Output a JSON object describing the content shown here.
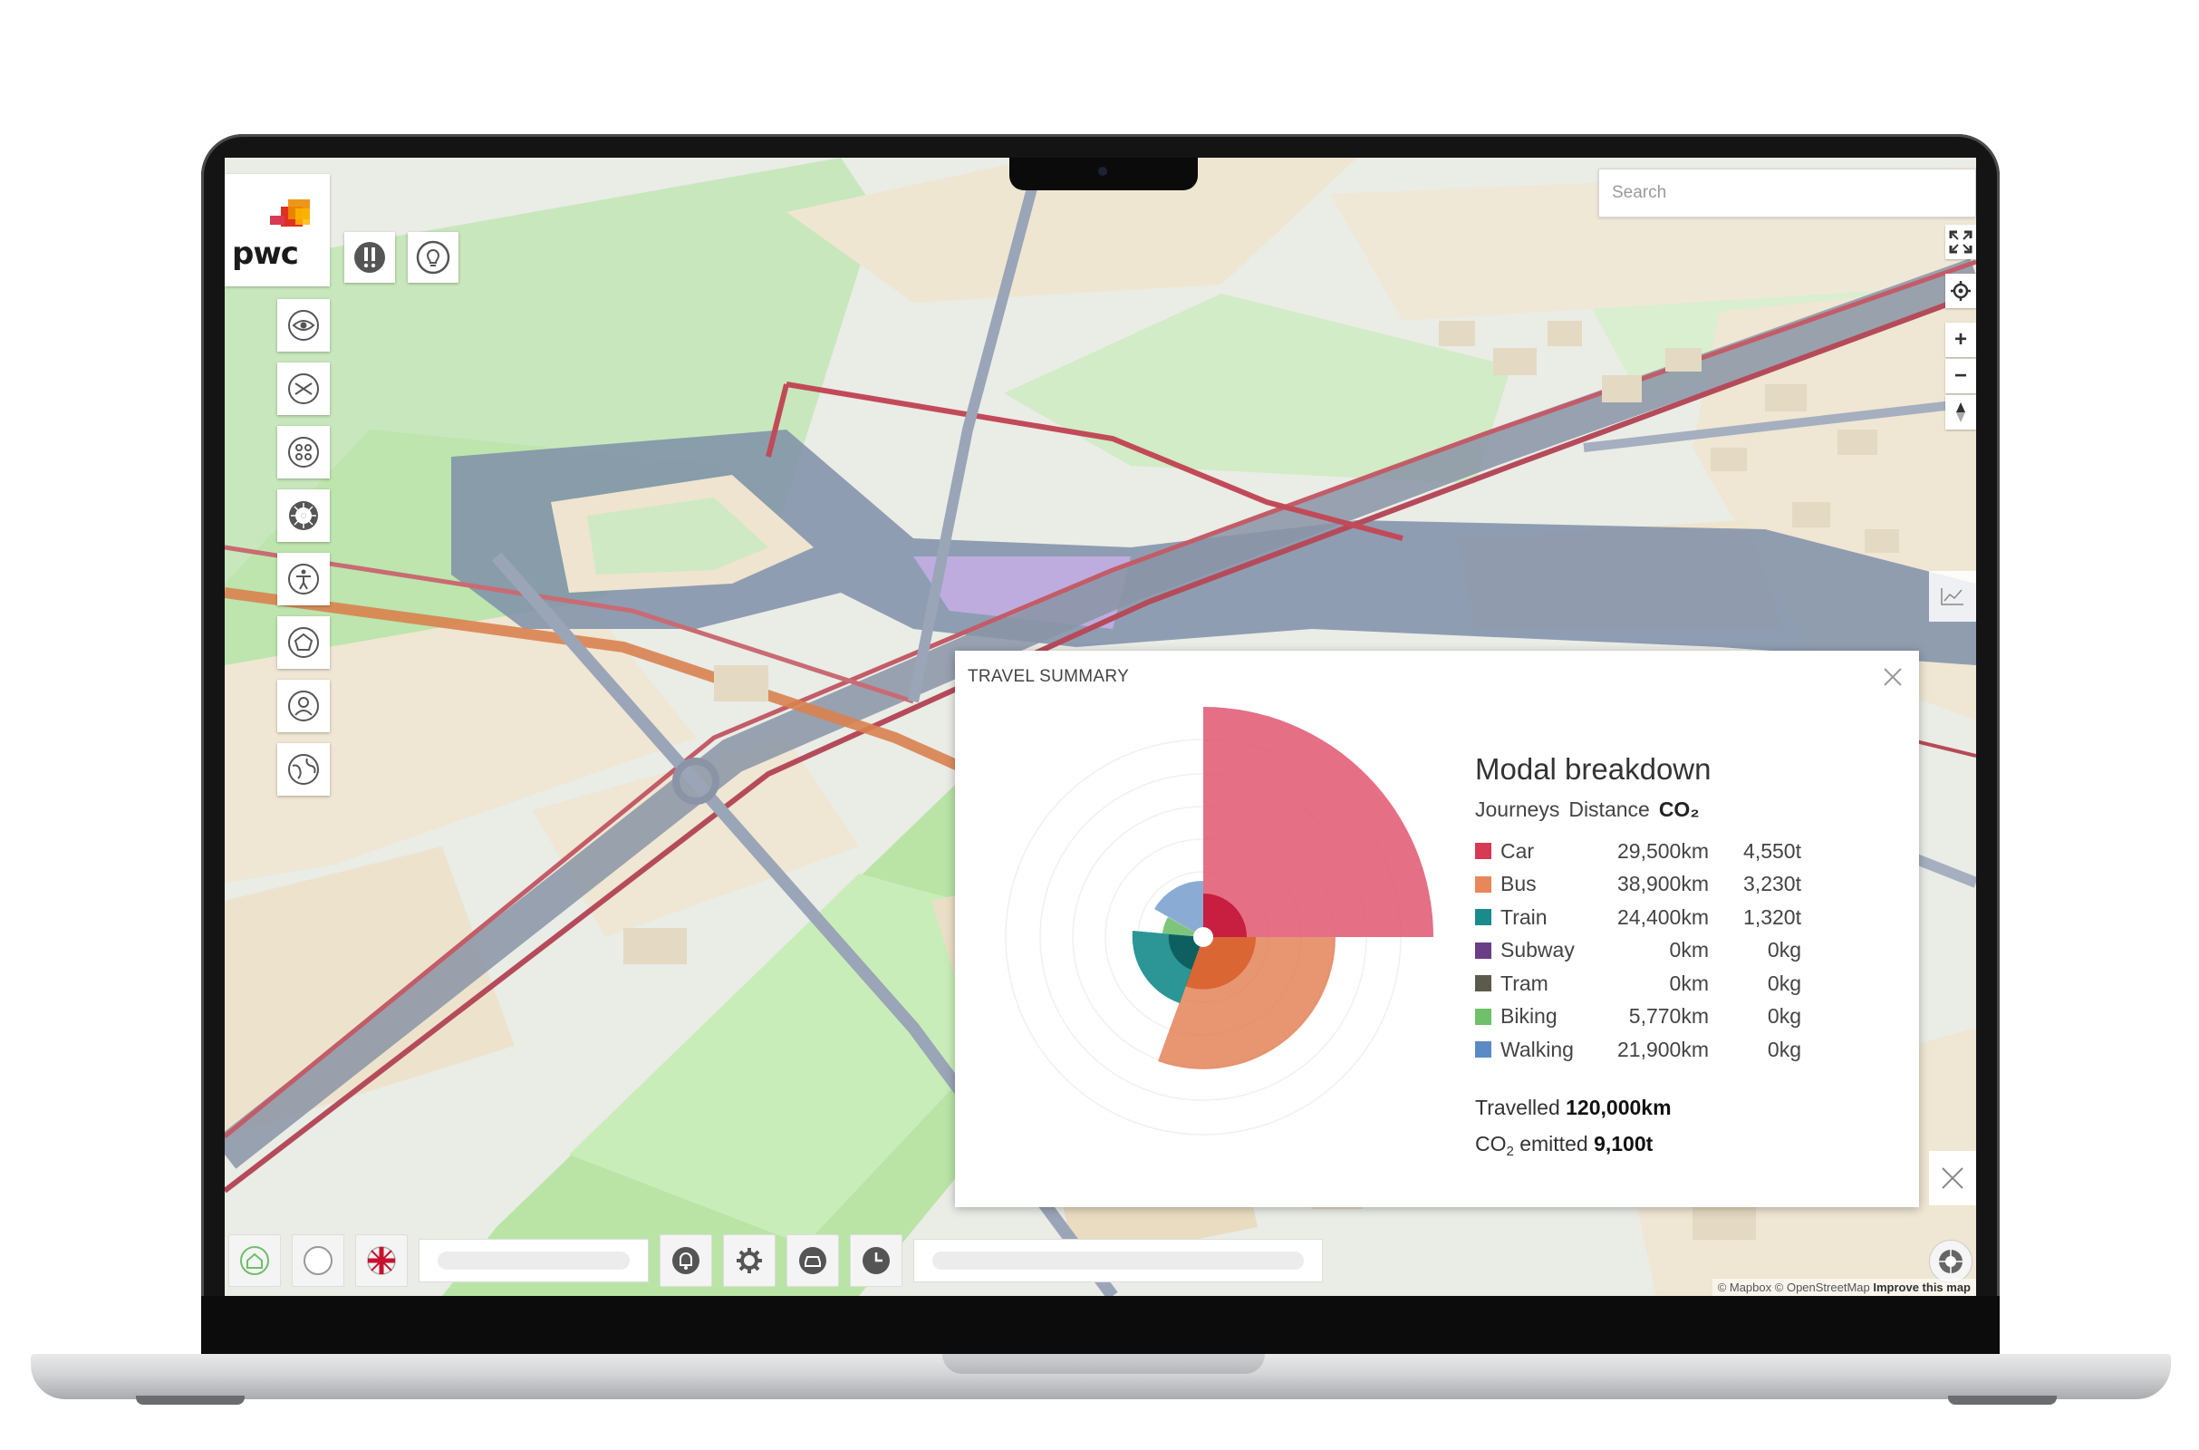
{
  "map": {
    "search_placeholder": "Search",
    "attribution": {
      "mapbox": "© Mapbox",
      "osm": "© OpenStreetMap",
      "improve": "Improve this map"
    }
  },
  "brand": {
    "logo_text": "pwc"
  },
  "top_buttons": [
    "alert-icon",
    "lightbulb-icon"
  ],
  "side_buttons": [
    "eye-icon",
    "envelope-icon",
    "network-icon",
    "wheel-icon",
    "accessibility-icon",
    "pentagon-icon",
    "user-icon",
    "globe-icon"
  ],
  "map_controls": [
    "fullscreen-icon",
    "locate-icon",
    "zoom-in-icon",
    "zoom-out-icon",
    "compass-north-icon"
  ],
  "bottom_bar": [
    "home-icon",
    "profile-icon",
    "uk-flag-icon",
    "bell-icon",
    "gear-icon",
    "car-icon",
    "clock-icon"
  ],
  "travel_summary": {
    "title": "TRAVEL SUMMARY",
    "modal_title": "Modal breakdown",
    "headers": [
      "Journeys",
      "Distance",
      "CO₂"
    ],
    "modes": [
      {
        "name": "Car",
        "distance": "29,500km",
        "co2": "4,550t",
        "color": "#d63a55"
      },
      {
        "name": "Bus",
        "distance": "38,900km",
        "co2": "3,230t",
        "color": "#e8875a"
      },
      {
        "name": "Train",
        "distance": "24,400km",
        "co2": "1,320t",
        "color": "#1b8a8c"
      },
      {
        "name": "Subway",
        "distance": "0km",
        "co2": "0kg",
        "color": "#6a3f86"
      },
      {
        "name": "Tram",
        "distance": "0km",
        "co2": "0kg",
        "color": "#5c5a4b"
      },
      {
        "name": "Biking",
        "distance": "5,770km",
        "co2": "0kg",
        "color": "#6fbf6b"
      },
      {
        "name": "Walking",
        "distance": "21,900km",
        "co2": "0kg",
        "color": "#5b8bc4"
      }
    ],
    "totals": {
      "travelled_label": "Travelled",
      "travelled_value": "120,000km",
      "co2_prefix": "CO",
      "co2_sub": "2",
      "co2_label": " emitted",
      "co2_value": "9,100t"
    }
  }
}
